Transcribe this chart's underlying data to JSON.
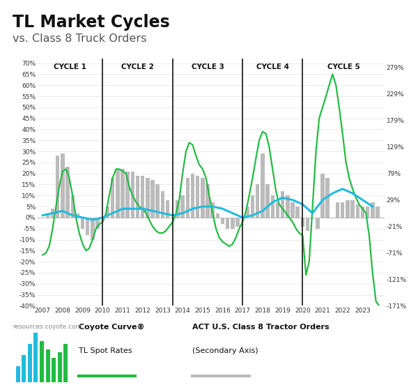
{
  "title_bold": "TL Market Cycles",
  "title_sub": "vs. Class 8 Truck Orders",
  "cycle_labels": [
    "CYCLE 1",
    "CYCLE 2",
    "CYCLE 3",
    "CYCLE 4",
    "CYCLE 5"
  ],
  "cycle_dividers": [
    2010.0,
    2013.5,
    2017.0,
    2020.0
  ],
  "ylim_left": [
    -40,
    72
  ],
  "ylim_right": [
    -171,
    295
  ],
  "ylabel_left_ticks": [
    -40,
    -35,
    -30,
    -25,
    -20,
    -15,
    -10,
    -5,
    0,
    5,
    10,
    15,
    20,
    25,
    30,
    35,
    40,
    45,
    50,
    55,
    60,
    65,
    70
  ],
  "ylabel_right_ticks": [
    -171,
    -121,
    -71,
    -21,
    29,
    79,
    129,
    179,
    229,
    279
  ],
  "background_color": "#ffffff",
  "bar_color": "#bbbbbb",
  "green_color": "#22bb44",
  "blue_color": "#22bbdd",
  "grid_color": "#e8e8e8",
  "divider_color": "#111111",
  "watermark": "resources.coyote.com",
  "spot_rate_data": {
    "dates": [
      2007.0,
      2007.17,
      2007.33,
      2007.5,
      2007.67,
      2007.83,
      2008.0,
      2008.17,
      2008.33,
      2008.5,
      2008.67,
      2008.83,
      2009.0,
      2009.17,
      2009.33,
      2009.5,
      2009.67,
      2009.83,
      2010.0,
      2010.17,
      2010.33,
      2010.5,
      2010.67,
      2010.83,
      2011.0,
      2011.17,
      2011.33,
      2011.5,
      2011.67,
      2011.83,
      2012.0,
      2012.17,
      2012.33,
      2012.5,
      2012.67,
      2012.83,
      2013.0,
      2013.17,
      2013.33,
      2013.5,
      2013.67,
      2013.83,
      2014.0,
      2014.17,
      2014.33,
      2014.5,
      2014.67,
      2014.83,
      2015.0,
      2015.17,
      2015.33,
      2015.5,
      2015.67,
      2015.83,
      2016.0,
      2016.17,
      2016.33,
      2016.5,
      2016.67,
      2016.83,
      2017.0,
      2017.17,
      2017.33,
      2017.5,
      2017.67,
      2017.83,
      2018.0,
      2018.17,
      2018.33,
      2018.5,
      2018.67,
      2018.83,
      2019.0,
      2019.17,
      2019.33,
      2019.5,
      2019.67,
      2019.83,
      2020.0,
      2020.17,
      2020.33,
      2020.5,
      2020.67,
      2020.83,
      2021.0,
      2021.17,
      2021.33,
      2021.5,
      2021.67,
      2021.83,
      2022.0,
      2022.17,
      2022.33,
      2022.5,
      2022.67,
      2022.83,
      2023.0,
      2023.17,
      2023.33,
      2023.5,
      2023.67,
      2023.83
    ],
    "values": [
      -17,
      -16,
      -13,
      -5,
      5,
      14,
      21,
      22,
      18,
      10,
      0,
      -7,
      -12,
      -15,
      -14,
      -10,
      -5,
      -3,
      -2,
      2,
      10,
      18,
      22,
      22,
      21,
      20,
      14,
      10,
      7,
      5,
      4,
      2,
      -1,
      -4,
      -6,
      -7,
      -7,
      -6,
      -4,
      -2,
      2,
      8,
      20,
      30,
      34,
      33,
      28,
      24,
      22,
      18,
      10,
      2,
      -5,
      -9,
      -11,
      -12,
      -13,
      -12,
      -9,
      -5,
      -2,
      3,
      10,
      18,
      27,
      35,
      39,
      38,
      32,
      22,
      12,
      6,
      4,
      2,
      0,
      -2,
      -5,
      -7,
      -8,
      -26,
      -20,
      5,
      30,
      45,
      50,
      55,
      60,
      65,
      60,
      50,
      38,
      25,
      18,
      13,
      9,
      6,
      4,
      2,
      -8,
      -25,
      -38,
      -40
    ]
  },
  "blue_line_data": {
    "dates": [
      2007.0,
      2007.5,
      2008.0,
      2008.5,
      2009.0,
      2009.5,
      2010.0,
      2010.5,
      2011.0,
      2011.5,
      2012.0,
      2012.5,
      2013.0,
      2013.5,
      2014.0,
      2014.5,
      2015.0,
      2015.5,
      2016.0,
      2016.5,
      2017.0,
      2017.5,
      2018.0,
      2018.5,
      2019.0,
      2019.5,
      2020.0,
      2020.5,
      2021.0,
      2021.5,
      2022.0,
      2022.5,
      2023.0,
      2023.5
    ],
    "values": [
      1,
      2,
      3,
      1,
      0,
      -1,
      0,
      2,
      4,
      4,
      4,
      3,
      2,
      1,
      2,
      4,
      5,
      5,
      4,
      2,
      0,
      1,
      3,
      7,
      9,
      8,
      6,
      2,
      8,
      11,
      13,
      11,
      8,
      5
    ]
  },
  "bar_data": {
    "dates": [
      2007.25,
      2007.5,
      2007.75,
      2008.0,
      2008.25,
      2008.5,
      2008.75,
      2009.0,
      2009.25,
      2009.5,
      2009.75,
      2010.25,
      2010.5,
      2010.75,
      2011.0,
      2011.25,
      2011.5,
      2011.75,
      2012.0,
      2012.25,
      2012.5,
      2012.75,
      2013.0,
      2013.25,
      2013.75,
      2014.0,
      2014.25,
      2014.5,
      2014.75,
      2015.0,
      2015.25,
      2015.5,
      2015.75,
      2016.0,
      2016.25,
      2016.5,
      2016.75,
      2017.25,
      2017.5,
      2017.75,
      2018.0,
      2018.25,
      2018.5,
      2018.75,
      2019.0,
      2019.25,
      2019.5,
      2019.75,
      2020.0,
      2020.25,
      2020.75,
      2021.0,
      2021.25,
      2021.75,
      2022.0,
      2022.25,
      2022.5,
      2022.75,
      2023.0,
      2023.25,
      2023.5,
      2023.75
    ],
    "values": [
      2,
      4,
      28,
      29,
      23,
      10,
      2,
      -5,
      -8,
      -10,
      -5,
      5,
      18,
      22,
      22,
      21,
      21,
      19,
      19,
      18,
      17,
      15,
      12,
      8,
      8,
      10,
      18,
      20,
      19,
      18,
      15,
      7,
      2,
      -3,
      -5,
      -5,
      -4,
      5,
      10,
      15,
      29,
      15,
      10,
      7,
      12,
      10,
      7,
      5,
      -4,
      -6,
      -5,
      20,
      18,
      7,
      7,
      8,
      8,
      6,
      5,
      5,
      7,
      5
    ]
  }
}
